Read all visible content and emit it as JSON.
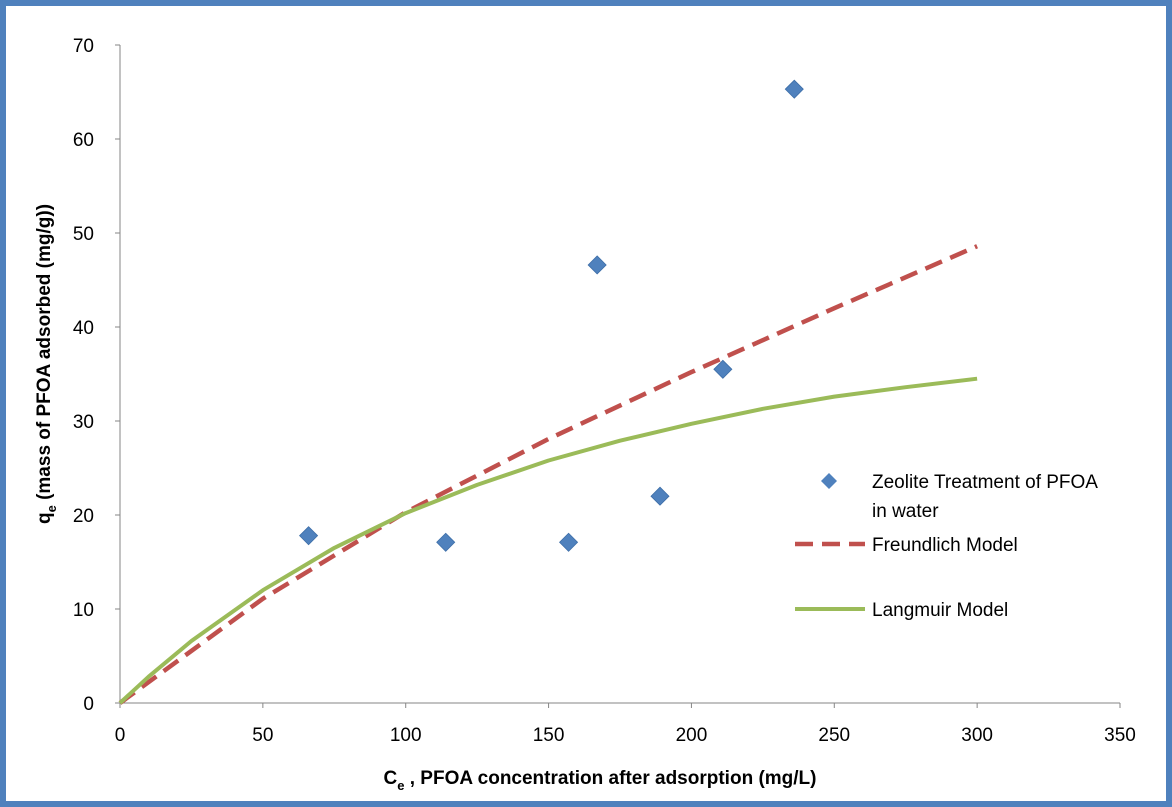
{
  "chart_data": {
    "type": "scatter",
    "xlabel_main": "C",
    "xlabel_sub": "e",
    "xlabel_sep": " , ",
    "xlabel_rest": "PFOA concentration after adsorption (mg/L)",
    "ylabel_main": "q",
    "ylabel_sub": "e",
    "ylabel_rest": " (mass of PFOA adsorbed (mg/g))",
    "xlim": [
      0,
      350
    ],
    "ylim": [
      0,
      70
    ],
    "x_ticks": [
      "0",
      "50",
      "100",
      "150",
      "200",
      "250",
      "300",
      "350"
    ],
    "y_ticks": [
      "0",
      "10",
      "20",
      "30",
      "40",
      "50",
      "60",
      "70"
    ],
    "grid": false,
    "legend_position": "right",
    "series": [
      {
        "name": "Zeolite Treatment of PFOA in water",
        "legend_lines": [
          "Zeolite Treatment of PFOA",
          "in water"
        ],
        "kind": "markers",
        "marker": "diamond",
        "color": "#4f81bd",
        "points": [
          {
            "x": 66,
            "y": 17.8
          },
          {
            "x": 114,
            "y": 17.1
          },
          {
            "x": 157,
            "y": 17.1
          },
          {
            "x": 167,
            "y": 46.6
          },
          {
            "x": 189,
            "y": 22.0
          },
          {
            "x": 211,
            "y": 35.5
          },
          {
            "x": 236,
            "y": 65.3
          }
        ]
      },
      {
        "name": "Freundlich Model",
        "legend_lines": [
          "Freundlich Model"
        ],
        "kind": "line",
        "style": "dashed",
        "color": "#c0504d",
        "points": [
          {
            "x": 0,
            "y": 0
          },
          {
            "x": 50,
            "y": 11.1
          },
          {
            "x": 100,
            "y": 20.3
          },
          {
            "x": 150,
            "y": 28.1
          },
          {
            "x": 200,
            "y": 35.2
          },
          {
            "x": 250,
            "y": 42.0
          },
          {
            "x": 300,
            "y": 48.6
          }
        ]
      },
      {
        "name": "Langmuir Model",
        "legend_lines": [
          "Langmuir Model"
        ],
        "kind": "line",
        "style": "solid",
        "color": "#9bbb59",
        "points": [
          {
            "x": 0,
            "y": 0
          },
          {
            "x": 10,
            "y": 2.8
          },
          {
            "x": 25,
            "y": 6.6
          },
          {
            "x": 50,
            "y": 12.0
          },
          {
            "x": 75,
            "y": 16.5
          },
          {
            "x": 100,
            "y": 20.2
          },
          {
            "x": 125,
            "y": 23.2
          },
          {
            "x": 150,
            "y": 25.8
          },
          {
            "x": 175,
            "y": 27.9
          },
          {
            "x": 200,
            "y": 29.7
          },
          {
            "x": 225,
            "y": 31.3
          },
          {
            "x": 250,
            "y": 32.6
          },
          {
            "x": 275,
            "y": 33.6
          },
          {
            "x": 300,
            "y": 34.5
          }
        ]
      }
    ]
  }
}
